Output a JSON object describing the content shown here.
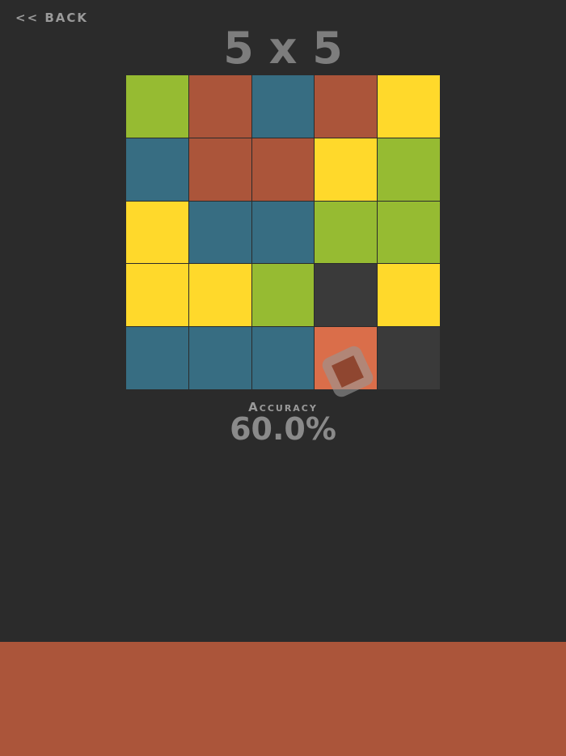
{
  "header": {
    "back_label": "<< BACK",
    "title": "5 x 5"
  },
  "colors": {
    "green": "#96bb32",
    "rust": "#ab553a",
    "teal": "#376d82",
    "yellow": "#ffd92b",
    "empty": "#3a3a3a",
    "orange": "#da6e4a",
    "background": "#2b2b2b"
  },
  "grid": [
    [
      "green",
      "rust",
      "teal",
      "rust",
      "yellow"
    ],
    [
      "teal",
      "rust",
      "rust",
      "yellow",
      "green"
    ],
    [
      "yellow",
      "teal",
      "teal",
      "green",
      "green"
    ],
    [
      "yellow",
      "yellow",
      "green",
      "empty",
      "yellow"
    ],
    [
      "teal",
      "teal",
      "teal",
      "orange",
      "empty"
    ]
  ],
  "held_piece": {
    "color": "rust"
  },
  "stats": {
    "accuracy_label": "Accuracy",
    "accuracy_value": "60.0%"
  },
  "bottom_bar": {
    "color": "rust"
  }
}
